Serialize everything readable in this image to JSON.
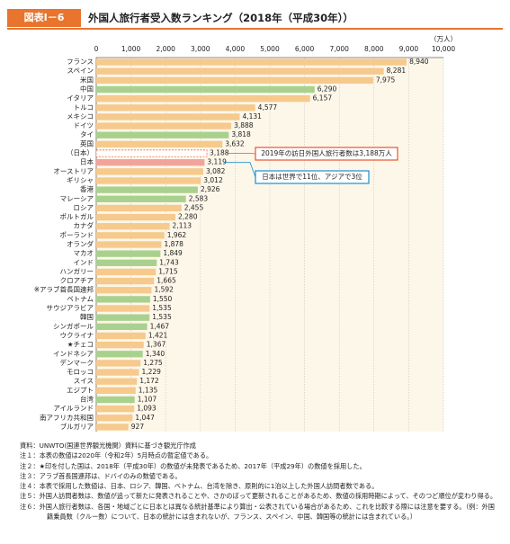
{
  "header": {
    "badge": "図表Ⅰ－6",
    "title": "外国人旅行者受入数ランキング（2018年（平成30年））"
  },
  "chart_data": {
    "type": "hbar",
    "unit_label": "（万人）",
    "categories": [
      "フランス",
      "スペイン",
      "米国",
      "中国",
      "イタリア",
      "トルコ",
      "メキシコ",
      "ドイツ",
      "タイ",
      "英国",
      "（日本）",
      "日本",
      "オーストリア",
      "ギリシャ",
      "香港",
      "マレーシア",
      "ロシア",
      "ポルトガル",
      "カナダ",
      "ポーランド",
      "オランダ",
      "マカオ",
      "インド",
      "ハンガリー",
      "クロアチア",
      "※アラブ首長国連邦",
      "ベトナム",
      "サウジアラビア",
      "韓国",
      "シンガポール",
      "ウクライナ",
      "★チェコ",
      "インドネシア",
      "デンマーク",
      "モロッコ",
      "スイス",
      "エジプト",
      "台湾",
      "アイルランド",
      "南アフリカ共和国",
      "ブルガリア"
    ],
    "values": [
      8940,
      8281,
      7975,
      6290,
      6157,
      4577,
      4131,
      3888,
      3818,
      3632,
      3188,
      3119,
      3082,
      3012,
      2926,
      2583,
      2455,
      2280,
      2113,
      1962,
      1878,
      1849,
      1743,
      1715,
      1665,
      1592,
      1550,
      1535,
      1535,
      1467,
      1421,
      1367,
      1340,
      1275,
      1229,
      1172,
      1135,
      1107,
      1093,
      1047,
      927
    ],
    "value_labels": [
      "8,940",
      "8,281",
      "7,975",
      "6,290",
      "6,157",
      "4,577",
      "4,131",
      "3,888",
      "3,818",
      "3,632",
      "3,188",
      "3,119",
      "3,082",
      "3,012",
      "2,926",
      "2,583",
      "2,455",
      "2,280",
      "2,113",
      "1,962",
      "1,878",
      "1,849",
      "1,743",
      "1,715",
      "1,665",
      "1,592",
      "1,550",
      "1,535",
      "1,535",
      "1,467",
      "1,421",
      "1,367",
      "1,340",
      "1,275",
      "1,229",
      "1,172",
      "1,135",
      "1,107",
      "1,093",
      "1,047",
      "927"
    ],
    "colors": [
      "#f6c98c",
      "#f6c98c",
      "#f6c98c",
      "#a9d18e",
      "#f6c98c",
      "#f6c98c",
      "#f6c98c",
      "#f6c98c",
      "#a9d18e",
      "#f6c98c",
      "none",
      "#f2a39b",
      "#f6c98c",
      "#f6c98c",
      "#a9d18e",
      "#a9d18e",
      "#f6c98c",
      "#f6c98c",
      "#f6c98c",
      "#f6c98c",
      "#f6c98c",
      "#a9d18e",
      "#a9d18e",
      "#f6c98c",
      "#f6c98c",
      "#f6c98c",
      "#a9d18e",
      "#f6c98c",
      "#a9d18e",
      "#a9d18e",
      "#f6c98c",
      "#f6c98c",
      "#a9d18e",
      "#f6c98c",
      "#f6c98c",
      "#f6c98c",
      "#f6c98c",
      "#a9d18e",
      "#f6c98c",
      "#f6c98c",
      "#f6c98c"
    ],
    "outline_color": "#e8542e",
    "xlim": [
      0,
      10000
    ],
    "xticks": [
      0,
      {
        "value": 1000,
        "label": "1,000"
      },
      {
        "value": 2000,
        "label": "2,000"
      },
      {
        "value": 3000,
        "label": "3,000"
      },
      {
        "value": 4000,
        "label": "4,000"
      },
      {
        "value": 5000,
        "label": "5,000"
      },
      {
        "value": 6000,
        "label": "6,000"
      },
      {
        "value": 7000,
        "label": "7,000"
      },
      {
        "value": 8000,
        "label": "8,000"
      },
      {
        "value": 9000,
        "label": "9,000"
      },
      {
        "value": 10000,
        "label": "10,000"
      }
    ],
    "grid": true,
    "annotations": [
      {
        "text": "2019年の訪日外国人旅行者数は3,188万人",
        "color": "#e8542e"
      },
      {
        "text": "日本は世界で11位、アジアで3位",
        "color": "#1a8fd0"
      }
    ]
  },
  "notes": [
    "資料：UNWTO(国連世界観光機関）資料に基づき観光庁作成",
    "注１：本表の数値は2020年（令和2年）5月時点の暫定値である。",
    "注２：★印を付した国は、2018年（平成30年）の数値が未発表であるため、2017年（平成29年）の数値を採用した。",
    "注３：アラブ首長国連邦は、ドバイのみの数値である。",
    "注４：本表で採用した数値は、日本、ロシア、韓国、ベトナム、台湾を除き、原則的に1泊以上した外国人訪問者数である。",
    "注５：外国人訪問者数は、数値が追って新たに発表されることや、さかのぼって更新されることがあるため、数値の採用時期によって、そのつど順位が変わり得る。",
    "注６：外国人旅行者数は、各国・地域ごとに日本とは異なる統計基準により算出・公表されている場合があるため、これを比較する際には注意を要する。（例：外国籍乗員数（クルー数）について、日本の統計には含まれないが、フランス、スペイン、中国、韓国等の統計には含まれている。）"
  ]
}
